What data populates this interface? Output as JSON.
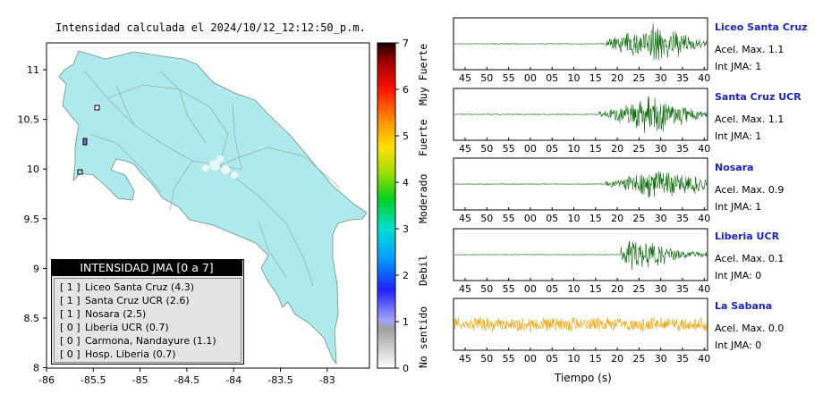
{
  "map": {
    "title": "Intensidad calculada el 2024/10/12_12:12:50_p.m.",
    "x_ticks": [
      "-86",
      "-85.5",
      "-85",
      "-84.5",
      "-84",
      "-83.5",
      "-83"
    ],
    "y_ticks": [
      "11",
      "10.5",
      "10",
      "9.5",
      "9",
      "8.5",
      "8"
    ],
    "land_color": "#aeeaeb"
  },
  "colorbar": {
    "ticks": [
      "0",
      "1",
      "2",
      "3",
      "4",
      "5",
      "6",
      "7"
    ],
    "categories": [
      "No sentido",
      "Debil",
      "Moderado",
      "Fuerte",
      "Muy Fuerte"
    ]
  },
  "legend": {
    "title": "INTENSIDAD JMA [0 a 7]",
    "rows": [
      {
        "level": "[ 1 ]",
        "label": "Liceo Santa Cruz (4.3)"
      },
      {
        "level": "[ 1 ]",
        "label": "Santa Cruz UCR (2.6)"
      },
      {
        "level": "[ 1 ]",
        "label": "Nosara (2.5)"
      },
      {
        "level": "[ 0 ]",
        "label": "Liberia UCR (0.7)"
      },
      {
        "level": "[ 0 ]",
        "label": "Carmona, Nandayure (1.1)"
      },
      {
        "level": "[ 0 ]",
        "label": "Hosp. Liberia (0.7)"
      }
    ]
  },
  "chart_data": {
    "type": "line",
    "x_ticks": [
      "45",
      "50",
      "55",
      "00",
      "05",
      "10",
      "15",
      "20",
      "25",
      "30",
      "35",
      "40"
    ],
    "xlabel": "Tiempo (s)",
    "stations": [
      {
        "name": "Liceo Santa Cruz",
        "accel": "Acel. Max. 1.1",
        "jma": "Int JMA: 1",
        "color": "#0a6b0a",
        "onset": 0.6,
        "peak": 0.79,
        "amp": 0.95
      },
      {
        "name": "Santa Cruz UCR",
        "accel": "Acel. Max. 1.1",
        "jma": "Int JMA: 1",
        "color": "#0a6b0a",
        "onset": 0.57,
        "peak": 0.79,
        "amp": 0.95
      },
      {
        "name": "Nosara",
        "accel": "Acel. Max. 0.9",
        "jma": "Int JMA: 1",
        "color": "#0a6b0a",
        "onset": 0.6,
        "peak": 0.83,
        "amp": 0.9
      },
      {
        "name": "Liberia UCR",
        "accel": "Acel. Max. 0.1",
        "jma": "Int JMA: 0",
        "color": "#0a6b0a",
        "onset": 0.66,
        "peak": 0.73,
        "amp": 0.8
      },
      {
        "name": "La Sabana",
        "accel": "Acel. Max. 0.0",
        "jma": "Int JMA: 0",
        "color": "#f0a000",
        "onset": 0.0,
        "peak": 0.5,
        "amp": 0.55
      }
    ]
  }
}
